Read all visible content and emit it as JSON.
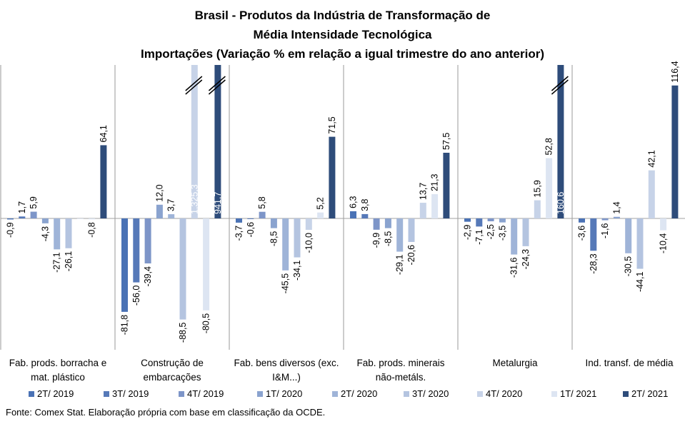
{
  "title_lines": [
    "Brasil - Produtos da Indústria de Transformação de",
    "Média Intensidade Tecnológica",
    "Importações (Variação % em relação a igual trimestre do ano anterior)"
  ],
  "source": "Fonte: Comex Stat. Elaboração própria com base em classificação da OCDE.",
  "colors": [
    "#4a72b5",
    "#5679b8",
    "#7d95c8",
    "#8aa3cf",
    "#9fb4d8",
    "#b4c4e0",
    "#c7d3e8",
    "#dde5f2",
    "#2e4c7a"
  ],
  "chart_data": {
    "type": "bar",
    "categories": [
      "Fab. prods. borracha e mat. plástico",
      "Construção de embarcações",
      "Fab. bens diversos (exc. I&M...)",
      "Fab. prods. minerais não-metáls.",
      "Metalurgia",
      "Ind. transf. de média"
    ],
    "category_lines": [
      [
        "Fab. prods. borracha e",
        "mat. plástico"
      ],
      [
        "Construção de",
        "embarcações"
      ],
      [
        "Fab. bens diversos (exc.",
        "I&M...)"
      ],
      [
        "Fab. prods. minerais",
        "não-metáls."
      ],
      [
        "Metalurgia"
      ],
      [
        "Ind. transf. de média"
      ]
    ],
    "series": [
      {
        "name": "2T/ 2019",
        "values": [
          -0.9,
          -81.8,
          -3.7,
          6.3,
          -2.9,
          -3.6
        ],
        "labels": [
          "-0,9",
          "-81,8",
          "-3,7",
          "6,3",
          "-2,9",
          "-3,6"
        ]
      },
      {
        "name": "3T/ 2019",
        "values": [
          1.7,
          -56.0,
          -0.6,
          3.8,
          -7.1,
          -28.3
        ],
        "labels": [
          "1,7",
          "-56,0",
          "-0,6",
          "3,8",
          "-7,1",
          "-28,3"
        ]
      },
      {
        "name": "4T/ 2019",
        "values": [
          5.9,
          -39.4,
          5.8,
          -9.9,
          -2.5,
          -1.6
        ],
        "labels": [
          "5,9",
          "-39,4",
          "5,8",
          "-9,9",
          "-2,5",
          "-1,6"
        ]
      },
      {
        "name": "1T/ 2020",
        "values": [
          -4.3,
          12.0,
          -8.5,
          -8.5,
          -3.5,
          1.4
        ],
        "labels": [
          "-4,3",
          "12,0",
          "-8,5",
          "-8,5",
          "-3,5",
          "1,4"
        ]
      },
      {
        "name": "2T/ 2020",
        "values": [
          -27.1,
          3.7,
          -45.5,
          -29.1,
          -31.6,
          -30.5
        ],
        "labels": [
          "-27,1",
          "3,7",
          "-45,5",
          "-29,1",
          "-31,6",
          "-30,5"
        ]
      },
      {
        "name": "3T/ 2020",
        "values": [
          -26.1,
          -88.5,
          -34.1,
          -20.6,
          -24.3,
          -44.1
        ],
        "labels": [
          "-26,1",
          "-88,5",
          "-34,1",
          "-20,6",
          "-24,3",
          "-44,1"
        ]
      },
      {
        "name": "4T/ 2020",
        "values": [
          0.0,
          1325.3,
          -10.0,
          13.7,
          15.9,
          42.1
        ],
        "labels": [
          "",
          "1.325,3",
          "-10,0",
          "13,7",
          "15,9",
          "42,1"
        ]
      },
      {
        "name": "1T/ 2021",
        "values": [
          -0.8,
          -80.5,
          5.2,
          21.3,
          52.8,
          -10.4
        ],
        "labels": [
          "-0,8",
          "-80,5",
          "5,2",
          "21,3",
          "52,8",
          "-10,4"
        ]
      },
      {
        "name": "2T/ 2021",
        "values": [
          64.1,
          941.7,
          71.5,
          57.5,
          160.6,
          116.4
        ],
        "labels": [
          "64,1",
          "941,7",
          "71,5",
          "57,5",
          "160,6",
          "116,4"
        ]
      }
    ],
    "axis_break": true
  }
}
